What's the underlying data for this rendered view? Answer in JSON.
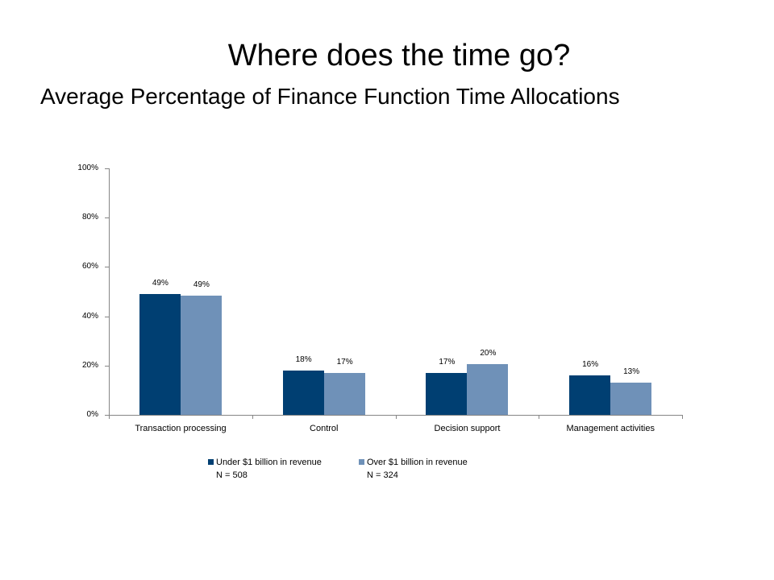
{
  "slide": {
    "title": "Where  does the time go?",
    "subtitle": "Average Percentage of Finance Function Time Allocations"
  },
  "colors": {
    "series1": "#003f72",
    "series2": "#6f91b8",
    "axis": "#868686"
  },
  "chart_data": {
    "type": "bar",
    "title": "Average Percentage of Finance Function Time Allocations",
    "xlabel": "",
    "ylabel": "",
    "ylim": [
      0,
      100
    ],
    "yticks": [
      "0%",
      "20%",
      "40%",
      "60%",
      "80%",
      "100%"
    ],
    "grid": false,
    "legend_position": "bottom",
    "categories": [
      "Transaction processing",
      "Control",
      "Decision support",
      "Management activities"
    ],
    "series": [
      {
        "name": "Under $1 billion in revenue",
        "note": "N = 508",
        "values": [
          49,
          18,
          17,
          16
        ],
        "labels": [
          "49%",
          "18%",
          "17%",
          "16%"
        ]
      },
      {
        "name": "Over $1 billion in revenue",
        "note": "N = 324",
        "values": [
          48.5,
          17,
          20.5,
          13
        ],
        "labels": [
          "49%",
          "17%",
          "20%",
          "13%"
        ]
      }
    ]
  }
}
